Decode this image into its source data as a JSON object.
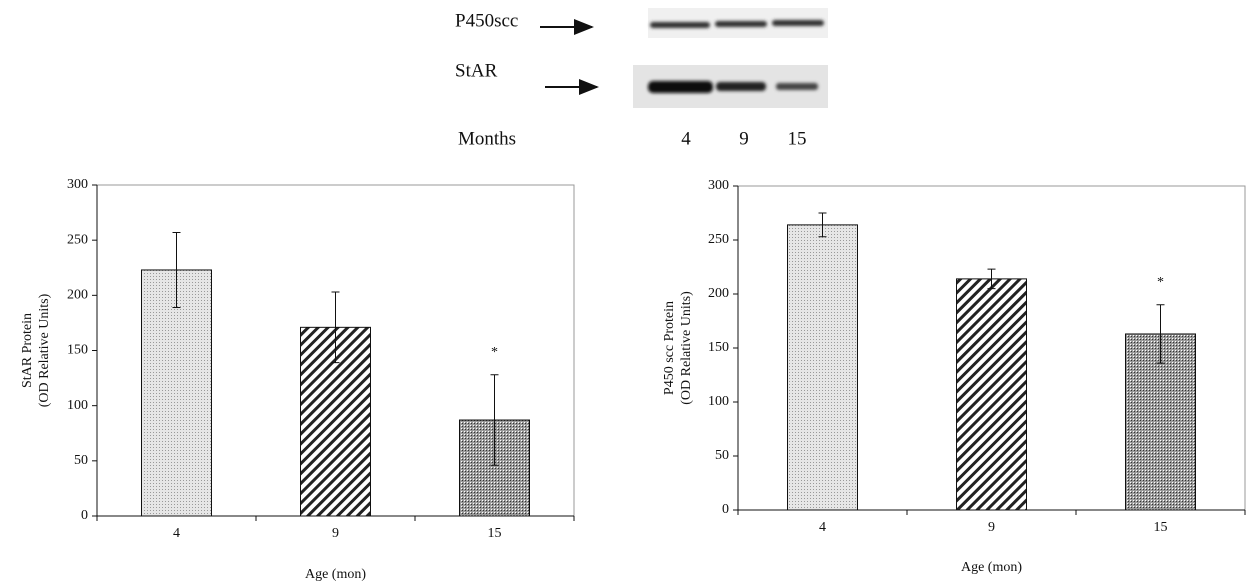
{
  "blot": {
    "rows": [
      "P450scc",
      "StAR"
    ],
    "axis_label": "Months",
    "lanes": [
      "4",
      "9",
      "15"
    ]
  },
  "chart_data": [
    {
      "type": "bar",
      "categories": [
        "4",
        "9",
        "15"
      ],
      "values": [
        223,
        171,
        87
      ],
      "errors": [
        34,
        32,
        41
      ],
      "ylim": [
        0,
        300
      ],
      "yticks": [
        0,
        50,
        100,
        150,
        200,
        250,
        300
      ],
      "xlabel": "Age (mon)",
      "ylabel": [
        "StAR Protein",
        "(OD Relative Units)"
      ],
      "annotations": [
        {
          "text": "*",
          "x": "15"
        }
      ]
    },
    {
      "type": "bar",
      "categories": [
        "4",
        "9",
        "15"
      ],
      "values": [
        264,
        214,
        163
      ],
      "errors": [
        11,
        9,
        27
      ],
      "ylim": [
        0,
        300
      ],
      "yticks": [
        0,
        50,
        100,
        150,
        200,
        250,
        300
      ],
      "xlabel": "Age (mon)",
      "ylabel": [
        "P450 scc Protein",
        "(OD Relative Units)"
      ],
      "annotations": [
        {
          "text": "*",
          "x": "15"
        }
      ]
    }
  ]
}
